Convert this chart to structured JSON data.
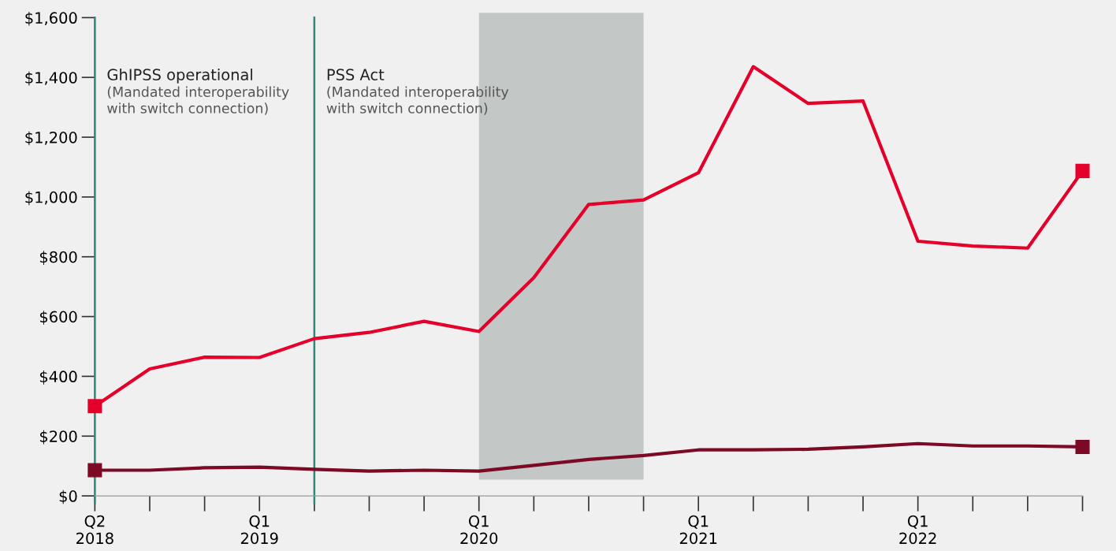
{
  "chart_data": {
    "type": "line",
    "categories": [
      "Q2\n2018",
      null,
      null,
      "Q1\n2019",
      null,
      null,
      null,
      "Q1\n2020",
      null,
      null,
      null,
      "Q1\n2021",
      null,
      null,
      null,
      "Q1\n2022",
      null,
      null,
      null
    ],
    "series": [
      {
        "color": "#e4002b",
        "values": [
          300,
          425,
          464,
          463,
          526,
          547,
          584,
          550,
          730,
          975,
          990,
          1081,
          1436,
          1313,
          1321,
          852,
          836,
          829,
          1087
        ]
      },
      {
        "color": "#7d0a24",
        "values": [
          86,
          86,
          94,
          96,
          89,
          83,
          86,
          83,
          102,
          122,
          135,
          154,
          154,
          156,
          164,
          175,
          167,
          167,
          164
        ]
      }
    ],
    "ylim": [
      0,
      1600
    ],
    "yticks": [
      {
        "value": 0,
        "label": "$0"
      },
      {
        "value": 200,
        "label": "$200"
      },
      {
        "value": 400,
        "label": "$400"
      },
      {
        "value": 600,
        "label": "$600"
      },
      {
        "value": 800,
        "label": "$800"
      },
      {
        "value": 1000,
        "label": "$1,000"
      },
      {
        "value": 1200,
        "label": "$1,200"
      },
      {
        "value": 1400,
        "label": "$1,400"
      },
      {
        "value": 1600,
        "label": "$1,600"
      }
    ],
    "annotations": [
      "GhIPSS operational\n(Mandated interoperability\nwith switch connection)",
      "PSS Act\n(Mandated interoperability\nwith switch connection)"
    ],
    "grid": false
  }
}
